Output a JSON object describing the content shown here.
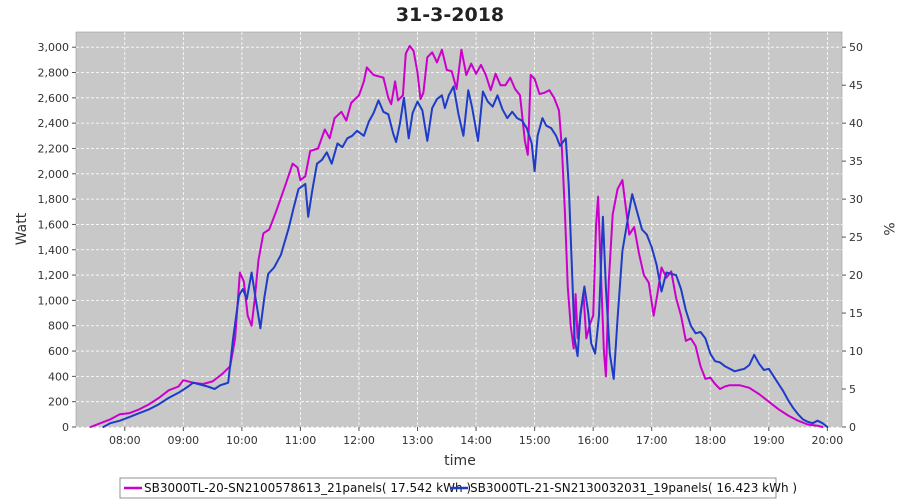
{
  "chart_data": {
    "type": "line",
    "title": "31-3-2018",
    "xlabel": "time",
    "ylabel": "Watt",
    "y2label": "%",
    "x_ticks": [
      "08:00",
      "09:00",
      "10:00",
      "11:00",
      "12:00",
      "13:00",
      "14:00",
      "15:00",
      "16:00",
      "17:00",
      "18:00",
      "19:00",
      "20:00"
    ],
    "xlim": [
      "07:10",
      "20:15"
    ],
    "ylim": [
      0,
      3120
    ],
    "y_ticks": [
      0,
      200,
      400,
      600,
      800,
      1000,
      1200,
      1400,
      1600,
      1800,
      2000,
      2200,
      2400,
      2600,
      2800,
      3000
    ],
    "y_tick_labels": [
      "0",
      "200",
      "400",
      "600",
      "800",
      "1,000",
      "1,200",
      "1,400",
      "1,600",
      "1,800",
      "2,000",
      "2,200",
      "2,400",
      "2,600",
      "2,800",
      "3,000"
    ],
    "y2lim": [
      0,
      52
    ],
    "y2_ticks": [
      0,
      5,
      10,
      15,
      20,
      25,
      30,
      35,
      40,
      45,
      50
    ],
    "grid": true,
    "background": "#c8c8c8",
    "legend_position": "bottom",
    "series": [
      {
        "name": "SB3000TL-20-SN2100578613_21panels( 17.542 kWh )",
        "color": "#cc00cc",
        "points": [
          [
            "07:25",
            0
          ],
          [
            "07:35",
            30
          ],
          [
            "07:45",
            60
          ],
          [
            "07:55",
            100
          ],
          [
            "08:05",
            110
          ],
          [
            "08:15",
            140
          ],
          [
            "08:25",
            180
          ],
          [
            "08:35",
            230
          ],
          [
            "08:45",
            290
          ],
          [
            "08:55",
            320
          ],
          [
            "09:00",
            370
          ],
          [
            "09:10",
            350
          ],
          [
            "09:20",
            340
          ],
          [
            "09:30",
            360
          ],
          [
            "09:40",
            420
          ],
          [
            "09:48",
            480
          ],
          [
            "09:53",
            700
          ],
          [
            "09:58",
            1220
          ],
          [
            "10:02",
            1150
          ],
          [
            "10:06",
            880
          ],
          [
            "10:10",
            800
          ],
          [
            "10:13",
            1000
          ],
          [
            "10:17",
            1320
          ],
          [
            "10:22",
            1530
          ],
          [
            "10:28",
            1560
          ],
          [
            "10:35",
            1700
          ],
          [
            "10:45",
            1920
          ],
          [
            "10:52",
            2080
          ],
          [
            "10:57",
            2050
          ],
          [
            "11:00",
            1950
          ],
          [
            "11:05",
            1980
          ],
          [
            "11:10",
            2180
          ],
          [
            "11:18",
            2200
          ],
          [
            "11:25",
            2350
          ],
          [
            "11:30",
            2280
          ],
          [
            "11:35",
            2440
          ],
          [
            "11:42",
            2490
          ],
          [
            "11:47",
            2420
          ],
          [
            "11:52",
            2560
          ],
          [
            "12:00",
            2620
          ],
          [
            "12:05",
            2730
          ],
          [
            "12:08",
            2840
          ],
          [
            "12:15",
            2780
          ],
          [
            "12:25",
            2760
          ],
          [
            "12:30",
            2600
          ],
          [
            "12:33",
            2550
          ],
          [
            "12:37",
            2730
          ],
          [
            "12:40",
            2580
          ],
          [
            "12:45",
            2620
          ],
          [
            "12:48",
            2950
          ],
          [
            "12:52",
            3010
          ],
          [
            "12:56",
            2970
          ],
          [
            "13:00",
            2800
          ],
          [
            "13:03",
            2590
          ],
          [
            "13:06",
            2640
          ],
          [
            "13:10",
            2920
          ],
          [
            "13:15",
            2960
          ],
          [
            "13:20",
            2880
          ],
          [
            "13:25",
            2980
          ],
          [
            "13:30",
            2820
          ],
          [
            "13:35",
            2810
          ],
          [
            "13:40",
            2670
          ],
          [
            "13:45",
            2980
          ],
          [
            "13:50",
            2780
          ],
          [
            "13:55",
            2870
          ],
          [
            "14:00",
            2790
          ],
          [
            "14:05",
            2860
          ],
          [
            "14:10",
            2780
          ],
          [
            "14:15",
            2660
          ],
          [
            "14:20",
            2790
          ],
          [
            "14:25",
            2700
          ],
          [
            "14:30",
            2700
          ],
          [
            "14:35",
            2760
          ],
          [
            "14:40",
            2670
          ],
          [
            "14:45",
            2620
          ],
          [
            "14:50",
            2260
          ],
          [
            "14:53",
            2150
          ],
          [
            "14:56",
            2780
          ],
          [
            "15:00",
            2750
          ],
          [
            "15:05",
            2630
          ],
          [
            "15:10",
            2640
          ],
          [
            "15:15",
            2660
          ],
          [
            "15:20",
            2600
          ],
          [
            "15:25",
            2500
          ],
          [
            "15:28",
            2200
          ],
          [
            "15:31",
            1700
          ],
          [
            "15:34",
            1100
          ],
          [
            "15:37",
            800
          ],
          [
            "15:40",
            620
          ],
          [
            "15:42",
            1050
          ],
          [
            "15:44",
            700
          ],
          [
            "15:47",
            880
          ],
          [
            "15:50",
            1060
          ],
          [
            "15:53",
            700
          ],
          [
            "15:57",
            820
          ],
          [
            "16:00",
            880
          ],
          [
            "16:03",
            1600
          ],
          [
            "16:05",
            1820
          ],
          [
            "16:08",
            1200
          ],
          [
            "16:11",
            600
          ],
          [
            "16:13",
            400
          ],
          [
            "16:16",
            1150
          ],
          [
            "16:20",
            1680
          ],
          [
            "16:25",
            1880
          ],
          [
            "16:30",
            1950
          ],
          [
            "16:33",
            1760
          ],
          [
            "16:37",
            1520
          ],
          [
            "16:42",
            1580
          ],
          [
            "16:47",
            1370
          ],
          [
            "16:52",
            1200
          ],
          [
            "16:57",
            1140
          ],
          [
            "17:02",
            880
          ],
          [
            "17:06",
            1060
          ],
          [
            "17:10",
            1260
          ],
          [
            "17:15",
            1180
          ],
          [
            "17:20",
            1230
          ],
          [
            "17:25",
            1020
          ],
          [
            "17:30",
            880
          ],
          [
            "17:35",
            680
          ],
          [
            "17:40",
            700
          ],
          [
            "17:45",
            640
          ],
          [
            "17:50",
            480
          ],
          [
            "17:55",
            380
          ],
          [
            "18:00",
            390
          ],
          [
            "18:05",
            340
          ],
          [
            "18:10",
            300
          ],
          [
            "18:15",
            320
          ],
          [
            "18:20",
            330
          ],
          [
            "18:30",
            330
          ],
          [
            "18:40",
            310
          ],
          [
            "18:50",
            260
          ],
          [
            "19:00",
            200
          ],
          [
            "19:10",
            140
          ],
          [
            "19:20",
            90
          ],
          [
            "19:30",
            50
          ],
          [
            "19:40",
            20
          ],
          [
            "19:50",
            10
          ],
          [
            "19:55",
            0
          ]
        ]
      },
      {
        "name": "SB3000TL-21-SN2130032031_19panels( 16.423 kWh )",
        "color": "#1e3cc8",
        "points": [
          [
            "07:38",
            0
          ],
          [
            "07:45",
            30
          ],
          [
            "07:55",
            50
          ],
          [
            "08:05",
            80
          ],
          [
            "08:15",
            110
          ],
          [
            "08:25",
            140
          ],
          [
            "08:35",
            180
          ],
          [
            "08:45",
            230
          ],
          [
            "08:55",
            270
          ],
          [
            "09:05",
            320
          ],
          [
            "09:10",
            350
          ],
          [
            "09:15",
            340
          ],
          [
            "09:25",
            320
          ],
          [
            "09:32",
            300
          ],
          [
            "09:38",
            330
          ],
          [
            "09:42",
            340
          ],
          [
            "09:46",
            350
          ],
          [
            "09:51",
            700
          ],
          [
            "09:57",
            1040
          ],
          [
            "10:01",
            1090
          ],
          [
            "10:05",
            1010
          ],
          [
            "10:10",
            1220
          ],
          [
            "10:14",
            1020
          ],
          [
            "10:19",
            780
          ],
          [
            "10:23",
            1020
          ],
          [
            "10:27",
            1210
          ],
          [
            "10:33",
            1260
          ],
          [
            "10:40",
            1360
          ],
          [
            "10:48",
            1570
          ],
          [
            "10:53",
            1730
          ],
          [
            "10:58",
            1880
          ],
          [
            "11:05",
            1920
          ],
          [
            "11:08",
            1660
          ],
          [
            "11:12",
            1860
          ],
          [
            "11:17",
            2080
          ],
          [
            "11:22",
            2110
          ],
          [
            "11:27",
            2170
          ],
          [
            "11:32",
            2080
          ],
          [
            "11:38",
            2240
          ],
          [
            "11:43",
            2210
          ],
          [
            "11:48",
            2280
          ],
          [
            "11:53",
            2300
          ],
          [
            "11:58",
            2340
          ],
          [
            "12:05",
            2300
          ],
          [
            "12:10",
            2410
          ],
          [
            "12:15",
            2480
          ],
          [
            "12:20",
            2580
          ],
          [
            "12:25",
            2490
          ],
          [
            "12:30",
            2470
          ],
          [
            "12:35",
            2320
          ],
          [
            "12:38",
            2250
          ],
          [
            "12:42",
            2400
          ],
          [
            "12:46",
            2600
          ],
          [
            "12:51",
            2280
          ],
          [
            "12:55",
            2480
          ],
          [
            "13:00",
            2570
          ],
          [
            "13:05",
            2500
          ],
          [
            "13:10",
            2260
          ],
          [
            "13:15",
            2520
          ],
          [
            "13:20",
            2590
          ],
          [
            "13:25",
            2620
          ],
          [
            "13:28",
            2520
          ],
          [
            "13:32",
            2620
          ],
          [
            "13:37",
            2690
          ],
          [
            "13:42",
            2470
          ],
          [
            "13:47",
            2300
          ],
          [
            "13:52",
            2660
          ],
          [
            "13:56",
            2520
          ],
          [
            "14:02",
            2260
          ],
          [
            "14:07",
            2650
          ],
          [
            "14:12",
            2570
          ],
          [
            "14:17",
            2530
          ],
          [
            "14:22",
            2620
          ],
          [
            "14:27",
            2510
          ],
          [
            "14:32",
            2440
          ],
          [
            "14:37",
            2490
          ],
          [
            "14:42",
            2440
          ],
          [
            "14:47",
            2420
          ],
          [
            "14:52",
            2360
          ],
          [
            "14:57",
            2240
          ],
          [
            "15:00",
            2020
          ],
          [
            "15:03",
            2300
          ],
          [
            "15:08",
            2440
          ],
          [
            "15:12",
            2380
          ],
          [
            "15:17",
            2360
          ],
          [
            "15:22",
            2300
          ],
          [
            "15:26",
            2220
          ],
          [
            "15:32",
            2280
          ],
          [
            "15:35",
            1900
          ],
          [
            "15:38",
            1300
          ],
          [
            "15:41",
            700
          ],
          [
            "15:44",
            560
          ],
          [
            "15:47",
            900
          ],
          [
            "15:51",
            1110
          ],
          [
            "15:55",
            900
          ],
          [
            "15:58",
            660
          ],
          [
            "16:02",
            580
          ],
          [
            "16:06",
            880
          ],
          [
            "16:10",
            1660
          ],
          [
            "16:13",
            1100
          ],
          [
            "16:17",
            580
          ],
          [
            "16:21",
            380
          ],
          [
            "16:25",
            860
          ],
          [
            "16:30",
            1390
          ],
          [
            "16:35",
            1620
          ],
          [
            "16:40",
            1840
          ],
          [
            "16:45",
            1700
          ],
          [
            "16:50",
            1560
          ],
          [
            "16:55",
            1520
          ],
          [
            "17:00",
            1420
          ],
          [
            "17:05",
            1280
          ],
          [
            "17:10",
            1070
          ],
          [
            "17:15",
            1220
          ],
          [
            "17:20",
            1210
          ],
          [
            "17:25",
            1200
          ],
          [
            "17:30",
            1090
          ],
          [
            "17:35",
            920
          ],
          [
            "17:40",
            800
          ],
          [
            "17:45",
            740
          ],
          [
            "17:50",
            750
          ],
          [
            "17:55",
            700
          ],
          [
            "18:00",
            580
          ],
          [
            "18:05",
            520
          ],
          [
            "18:10",
            510
          ],
          [
            "18:15",
            480
          ],
          [
            "18:20",
            460
          ],
          [
            "18:25",
            440
          ],
          [
            "18:30",
            450
          ],
          [
            "18:35",
            460
          ],
          [
            "18:40",
            490
          ],
          [
            "18:45",
            570
          ],
          [
            "18:50",
            500
          ],
          [
            "18:55",
            450
          ],
          [
            "19:00",
            460
          ],
          [
            "19:05",
            400
          ],
          [
            "19:10",
            340
          ],
          [
            "19:15",
            280
          ],
          [
            "19:20",
            210
          ],
          [
            "19:25",
            150
          ],
          [
            "19:30",
            100
          ],
          [
            "19:35",
            60
          ],
          [
            "19:40",
            40
          ],
          [
            "19:45",
            30
          ],
          [
            "19:50",
            50
          ],
          [
            "19:55",
            30
          ],
          [
            "20:00",
            0
          ]
        ]
      }
    ]
  }
}
